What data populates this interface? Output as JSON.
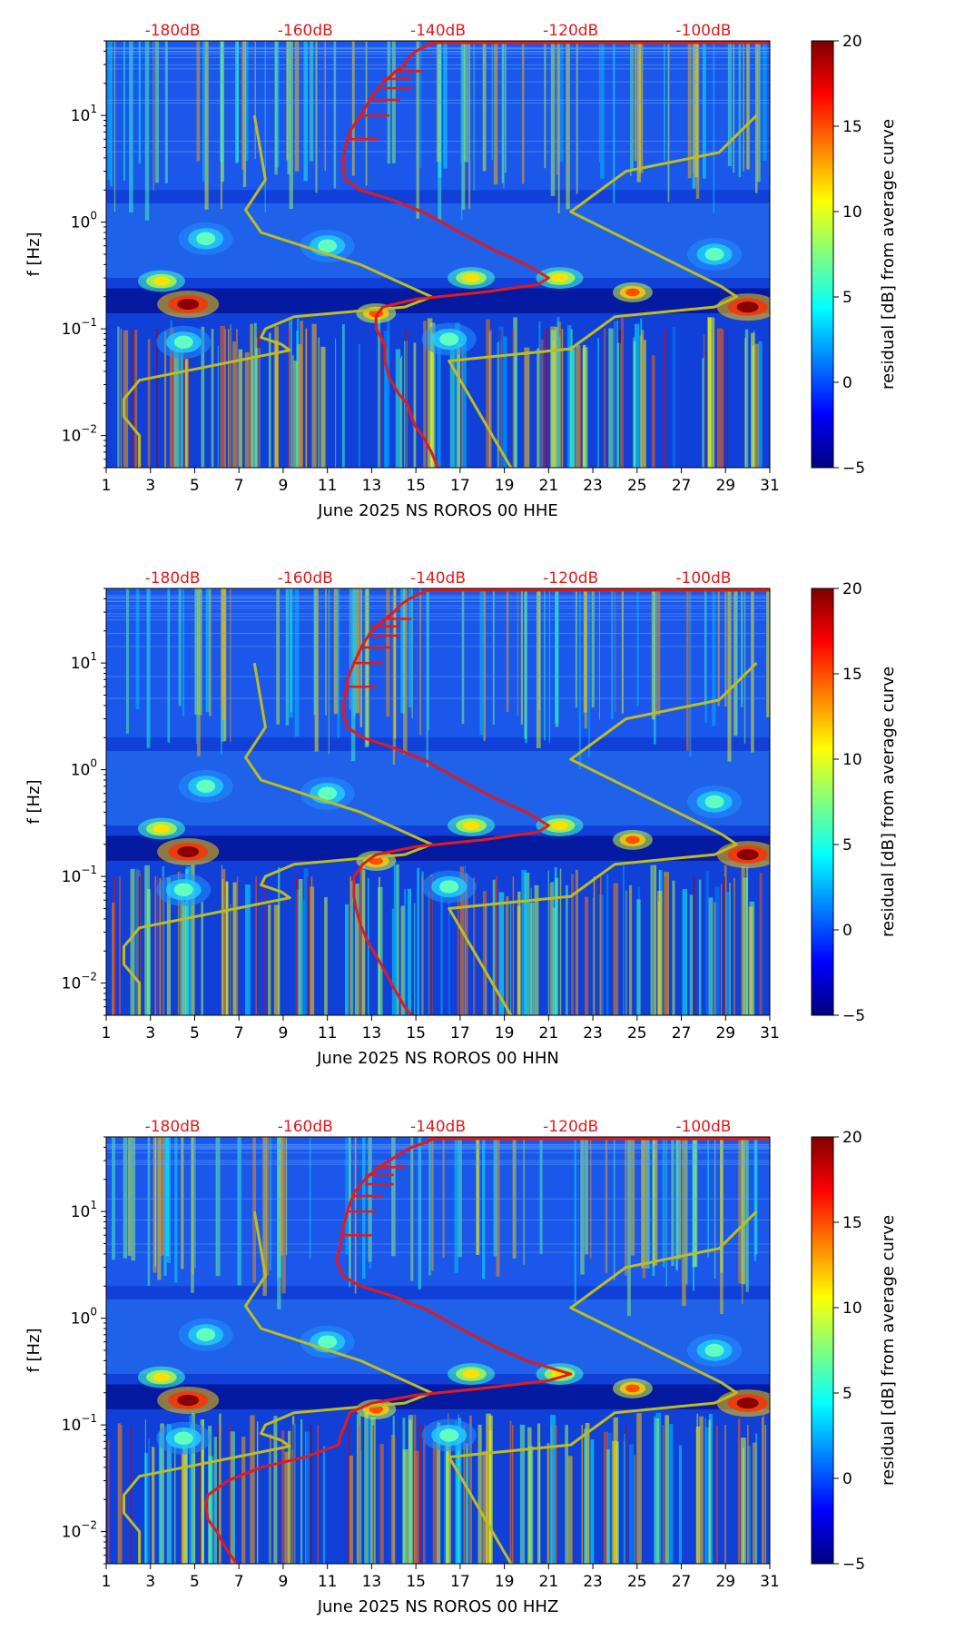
{
  "chart_data": {
    "type": "heatmap",
    "common": {
      "x_ticks": [
        1,
        3,
        5,
        7,
        9,
        11,
        13,
        15,
        17,
        19,
        21,
        23,
        25,
        27,
        29,
        31
      ],
      "xlim": [
        1,
        31
      ],
      "ylim": [
        0.005,
        50
      ],
      "yscale": "log",
      "ylabel": "f [Hz]",
      "y_ticks": [
        {
          "value": 0.01,
          "base": "10",
          "exp": "−2"
        },
        {
          "value": 0.1,
          "base": "10",
          "exp": "−1"
        },
        {
          "value": 1,
          "base": "10",
          "exp": "0"
        },
        {
          "value": 10,
          "base": "10",
          "exp": "1"
        }
      ],
      "top_labels": [
        {
          "day": 4.0,
          "text": "-180dB"
        },
        {
          "day": 10.0,
          "text": "-160dB"
        },
        {
          "day": 16.0,
          "text": "-140dB"
        },
        {
          "day": 22.0,
          "text": "-120dB"
        },
        {
          "day": 28.0,
          "text": "-100dB"
        }
      ],
      "colorbar": {
        "label": "residual [dB] from average curve",
        "min": -5,
        "max": 20,
        "ticks": [
          {
            "value": -5,
            "label": "−5"
          },
          {
            "value": 0,
            "label": "0"
          },
          {
            "value": 5,
            "label": "5"
          },
          {
            "value": 10,
            "label": "10"
          },
          {
            "value": 15,
            "label": "15"
          },
          {
            "value": 20,
            "label": "20"
          }
        ],
        "colormap": [
          "#000080",
          "#0000ff",
          "#0080ff",
          "#00ffff",
          "#80ff80",
          "#ffff00",
          "#ff8000",
          "#ff0000",
          "#800000"
        ]
      },
      "noise_model_curve": {
        "name": "noise model",
        "color": "#bcbd22",
        "points": [
          [
            7.7,
            10
          ],
          [
            8.2,
            2.5
          ],
          [
            7.3,
            1.3
          ],
          [
            8.0,
            0.8
          ],
          [
            12.5,
            0.4
          ],
          [
            15.7,
            0.2
          ],
          [
            14.5,
            0.16
          ],
          [
            9.5,
            0.13
          ],
          [
            8.2,
            0.1
          ],
          [
            8.0,
            0.083
          ],
          [
            8.9,
            0.072
          ],
          [
            9.3,
            0.063
          ],
          [
            2.5,
            0.033
          ],
          [
            1.8,
            0.022
          ],
          [
            1.8,
            0.015
          ],
          [
            2.5,
            0.01
          ],
          [
            2.5,
            0.005
          ]
        ]
      },
      "noise_model_curve_2": {
        "name": "noise model",
        "color": "#bcbd22",
        "points": [
          [
            30.4,
            10
          ],
          [
            28.7,
            4.5
          ],
          [
            24.5,
            3.0
          ],
          [
            24.2,
            2.7
          ],
          [
            22.0,
            1.25
          ],
          [
            28.8,
            0.25
          ],
          [
            29.5,
            0.2
          ],
          [
            28.5,
            0.16
          ],
          [
            24.0,
            0.13
          ],
          [
            22.0,
            0.065
          ],
          [
            16.5,
            0.05
          ],
          [
            19.3,
            0.005
          ]
        ]
      }
    },
    "panels": [
      {
        "xlabel": "June 2025 NS ROROS 00 HHE",
        "median_curve": {
          "name": "median",
          "color": "#e31a1c",
          "points": [
            [
              16,
              50
            ],
            [
              15.5,
              45
            ],
            [
              15,
              40
            ],
            [
              14.7,
              35
            ],
            [
              14.5,
              30
            ],
            [
              14.0,
              25
            ],
            [
              13.5,
              20
            ],
            [
              13.0,
              15
            ],
            [
              12.5,
              10
            ],
            [
              12.0,
              7
            ],
            [
              11.8,
              5
            ],
            [
              11.7,
              3.5
            ],
            [
              11.8,
              2.5
            ],
            [
              12.5,
              2.0
            ],
            [
              14,
              1.6
            ],
            [
              15.5,
              1.2
            ],
            [
              17,
              0.8
            ],
            [
              18.5,
              0.55
            ],
            [
              20,
              0.4
            ],
            [
              21,
              0.3
            ],
            [
              20.5,
              0.26
            ],
            [
              18,
              0.22
            ],
            [
              15,
              0.19
            ],
            [
              13.5,
              0.16
            ],
            [
              13.2,
              0.13
            ],
            [
              13.2,
              0.1
            ],
            [
              13.4,
              0.085
            ],
            [
              13.6,
              0.07
            ],
            [
              13.6,
              0.05
            ],
            [
              13.8,
              0.035
            ],
            [
              14.2,
              0.025
            ],
            [
              14.6,
              0.02
            ],
            [
              14.8,
              0.015
            ],
            [
              15.0,
              0.012
            ],
            [
              15.3,
              0.01
            ],
            [
              15.7,
              0.007
            ],
            [
              16.0,
              0.005
            ]
          ]
        }
      },
      {
        "xlabel": "June 2025 NS ROROS 00 HHN",
        "median_curve": {
          "name": "median",
          "color": "#e31a1c",
          "points": [
            [
              15.8,
              50
            ],
            [
              15.2,
              45
            ],
            [
              14.7,
              40
            ],
            [
              14.3,
              35
            ],
            [
              14.0,
              30
            ],
            [
              13.5,
              25
            ],
            [
              13.0,
              20
            ],
            [
              12.6,
              15
            ],
            [
              12.2,
              10
            ],
            [
              11.9,
              7
            ],
            [
              11.8,
              5
            ],
            [
              11.7,
              3.5
            ],
            [
              11.9,
              2.5
            ],
            [
              12.6,
              2.0
            ],
            [
              14,
              1.6
            ],
            [
              15.5,
              1.2
            ],
            [
              17,
              0.8
            ],
            [
              18.5,
              0.55
            ],
            [
              20,
              0.4
            ],
            [
              21,
              0.3
            ],
            [
              20.5,
              0.26
            ],
            [
              18,
              0.22
            ],
            [
              15,
              0.19
            ],
            [
              13.2,
              0.16
            ],
            [
              12.6,
              0.13
            ],
            [
              12.2,
              0.1
            ],
            [
              12.2,
              0.08
            ],
            [
              12.2,
              0.065
            ],
            [
              12.3,
              0.05
            ],
            [
              12.5,
              0.035
            ],
            [
              12.8,
              0.025
            ],
            [
              13.2,
              0.018
            ],
            [
              13.6,
              0.013
            ],
            [
              14.0,
              0.009
            ],
            [
              14.5,
              0.006
            ],
            [
              14.8,
              0.005
            ]
          ]
        }
      },
      {
        "xlabel": "June 2025 NS ROROS 00 HHZ",
        "median_curve": {
          "name": "median",
          "color": "#e31a1c",
          "points": [
            [
              16,
              50
            ],
            [
              15.5,
              45
            ],
            [
              14.8,
              40
            ],
            [
              14.3,
              35
            ],
            [
              13.8,
              30
            ],
            [
              13.2,
              25
            ],
            [
              12.7,
              20
            ],
            [
              12.2,
              15
            ],
            [
              11.9,
              10
            ],
            [
              11.7,
              7
            ],
            [
              11.6,
              5
            ],
            [
              11.4,
              3.5
            ],
            [
              11.7,
              2.5
            ],
            [
              12.5,
              2.0
            ],
            [
              14,
              1.6
            ],
            [
              15.5,
              1.2
            ],
            [
              17,
              0.8
            ],
            [
              18.5,
              0.55
            ],
            [
              20,
              0.4
            ],
            [
              22,
              0.3
            ],
            [
              21,
              0.26
            ],
            [
              18,
              0.22
            ],
            [
              15,
              0.19
            ],
            [
              13.0,
              0.16
            ],
            [
              12.0,
              0.13
            ],
            [
              11.8,
              0.1
            ],
            [
              11.6,
              0.08
            ],
            [
              11.5,
              0.065
            ],
            [
              10,
              0.05
            ],
            [
              8,
              0.04
            ],
            [
              6.5,
              0.03
            ],
            [
              5.6,
              0.022
            ],
            [
              5.5,
              0.018
            ],
            [
              5.6,
              0.013
            ],
            [
              6.0,
              0.01
            ],
            [
              6.4,
              0.007
            ],
            [
              6.9,
              0.005
            ]
          ]
        }
      }
    ]
  }
}
